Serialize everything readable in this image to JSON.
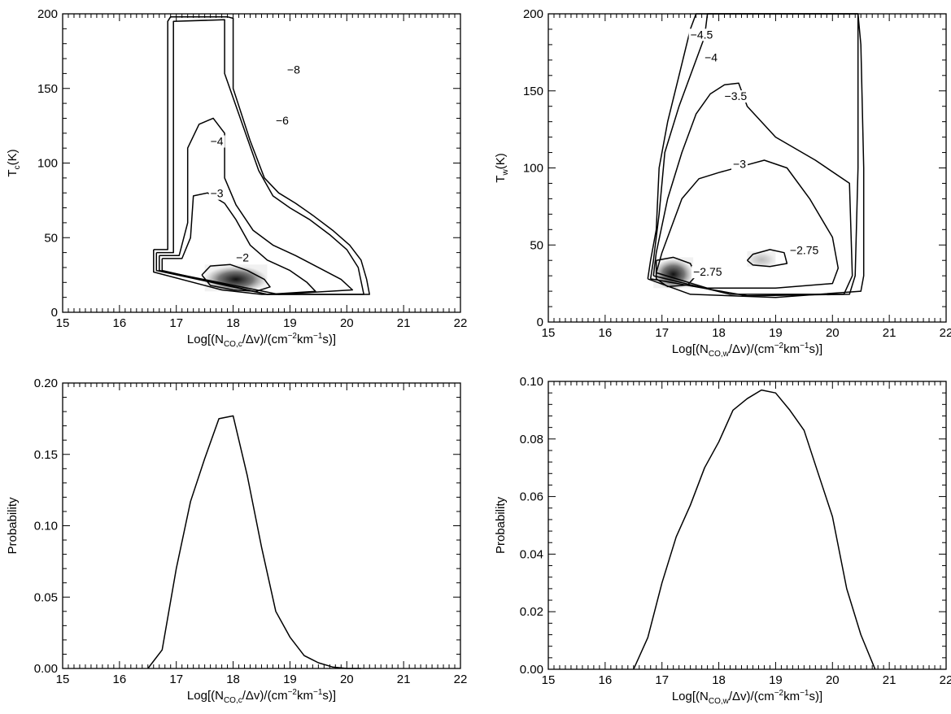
{
  "chart_data": [
    {
      "id": "panel-top-left",
      "type": "contour",
      "xlim": [
        15,
        22
      ],
      "ylim": [
        0,
        200
      ],
      "x_ticks": [
        "15",
        "16",
        "17",
        "18",
        "19",
        "20",
        "21",
        "22"
      ],
      "y_ticks": [
        "0",
        "50",
        "100",
        "150",
        "200"
      ],
      "xlabel": {
        "pre": "Log[(N",
        "sub1": "CO,c",
        "mid": "/Δv)/(cm",
        "sup1": "−2",
        "mid2": "km",
        "sup2": "−1",
        "post": "s)]"
      },
      "ylabel": {
        "pre": "T",
        "sub": "c",
        "post": "(K)"
      },
      "contours": [
        {
          "level": "−8",
          "label_at": [
            18.95,
            160
          ],
          "points": [
            [
              16.6,
              42
            ],
            [
              16.85,
              42
            ],
            [
              16.85,
              195
            ],
            [
              16.9,
              198
            ],
            [
              17.9,
              198
            ],
            [
              18,
              197
            ],
            [
              18,
              150
            ],
            [
              18.3,
              115
            ],
            [
              18.55,
              90
            ],
            [
              18.8,
              80
            ],
            [
              19.1,
              73
            ],
            [
              19.4,
              65
            ],
            [
              19.75,
              55
            ],
            [
              20.05,
              45
            ],
            [
              20.25,
              35
            ],
            [
              20.35,
              22
            ],
            [
              20.4,
              12
            ],
            [
              18.5,
              12
            ],
            [
              17.8,
              15
            ],
            [
              16.6,
              27
            ],
            [
              16.6,
              42
            ]
          ]
        },
        {
          "level": "−6",
          "label_at": [
            18.75,
            126
          ],
          "points": [
            [
              16.65,
              40
            ],
            [
              16.95,
              40
            ],
            [
              16.95,
              195
            ],
            [
              17.85,
              196
            ],
            [
              17.85,
              160
            ],
            [
              18.2,
              122
            ],
            [
              18.45,
              95
            ],
            [
              18.7,
              78
            ],
            [
              19,
              70
            ],
            [
              19.35,
              62
            ],
            [
              19.7,
              52
            ],
            [
              20,
              42
            ],
            [
              20.2,
              30
            ],
            [
              20.3,
              12
            ],
            [
              18.6,
              12
            ],
            [
              16.65,
              28
            ],
            [
              16.65,
              40
            ]
          ]
        },
        {
          "level": "−4",
          "label_at": [
            17.6,
            112
          ],
          "points": [
            [
              16.7,
              38
            ],
            [
              17.05,
              38
            ],
            [
              17.2,
              60
            ],
            [
              17.2,
              110
            ],
            [
              17.4,
              126
            ],
            [
              17.65,
              130
            ],
            [
              17.85,
              120
            ],
            [
              17.85,
              90
            ],
            [
              18.05,
              72
            ],
            [
              18.35,
              55
            ],
            [
              18.7,
              45
            ],
            [
              19.1,
              38
            ],
            [
              19.5,
              30
            ],
            [
              19.9,
              22
            ],
            [
              20.1,
              15
            ],
            [
              18.8,
              12
            ],
            [
              16.7,
              28
            ],
            [
              16.7,
              38
            ]
          ]
        },
        {
          "level": "−3",
          "label_at": [
            17.6,
            77
          ],
          "points": [
            [
              16.75,
              36
            ],
            [
              17.1,
              36
            ],
            [
              17.25,
              50
            ],
            [
              17.3,
              78
            ],
            [
              17.55,
              80
            ],
            [
              17.85,
              73
            ],
            [
              18.05,
              62
            ],
            [
              18.3,
              45
            ],
            [
              18.6,
              35
            ],
            [
              19,
              28
            ],
            [
              19.3,
              20
            ],
            [
              19.45,
              14
            ],
            [
              18.6,
              12
            ],
            [
              16.75,
              28
            ],
            [
              16.75,
              36
            ]
          ]
        },
        {
          "level": "−2",
          "label_at": [
            18.05,
            34
          ],
          "points": [
            [
              17.45,
              25
            ],
            [
              17.6,
              31
            ],
            [
              17.95,
              32
            ],
            [
              18.25,
              28
            ],
            [
              18.55,
              22
            ],
            [
              18.65,
              17
            ],
            [
              18.4,
              14
            ],
            [
              18,
              15
            ],
            [
              17.6,
              18
            ],
            [
              17.45,
              25
            ]
          ]
        }
      ],
      "density_peak": {
        "x": [
          17.5,
          18.6
        ],
        "y": [
          14,
          32
        ]
      }
    },
    {
      "id": "panel-top-right",
      "type": "contour",
      "xlim": [
        15,
        22
      ],
      "ylim": [
        0,
        200
      ],
      "x_ticks": [
        "15",
        "16",
        "17",
        "18",
        "19",
        "20",
        "21",
        "22"
      ],
      "y_ticks": [
        "0",
        "50",
        "100",
        "150",
        "200"
      ],
      "xlabel": {
        "pre": "Log[(N",
        "sub1": "CO,w",
        "mid": "/Δv)/(cm",
        "sup1": "−2",
        "mid2": "km",
        "sup2": "−1",
        "post": "s)]"
      },
      "ylabel": {
        "pre": "T",
        "sub": "w",
        "post": "(K)"
      },
      "contours": [
        {
          "level": "−4.5",
          "label_at": [
            17.5,
            184
          ],
          "points": [
            [
              16.75,
              28
            ],
            [
              16.8,
              40
            ],
            [
              16.9,
              60
            ],
            [
              16.95,
              100
            ],
            [
              17.1,
              130
            ],
            [
              17.3,
              160
            ],
            [
              17.5,
              190
            ],
            [
              17.6,
              200
            ],
            [
              20.45,
              200
            ],
            [
              20.5,
              180
            ],
            [
              20.55,
              100
            ],
            [
              20.55,
              30
            ],
            [
              20.5,
              20
            ],
            [
              19,
              16
            ],
            [
              17.5,
              18
            ],
            [
              16.75,
              28
            ]
          ]
        },
        {
          "level": "−4",
          "label_at": [
            17.75,
            169
          ],
          "points": [
            [
              16.8,
              28
            ],
            [
              16.85,
              40
            ],
            [
              16.95,
              70
            ],
            [
              17.05,
              110
            ],
            [
              17.3,
              140
            ],
            [
              17.6,
              170
            ],
            [
              17.75,
              185
            ],
            [
              17.8,
              200
            ],
            [
              20.45,
              200
            ],
            [
              20.45,
              100
            ],
            [
              20.4,
              30
            ],
            [
              20.3,
              18
            ],
            [
              18.5,
              17
            ],
            [
              16.8,
              28
            ]
          ]
        },
        {
          "level": "−3.5",
          "label_at": [
            18.1,
            144
          ],
          "points": [
            [
              16.85,
              30
            ],
            [
              16.9,
              45
            ],
            [
              17.1,
              80
            ],
            [
              17.35,
              110
            ],
            [
              17.6,
              135
            ],
            [
              17.85,
              148
            ],
            [
              18.1,
              154
            ],
            [
              18.35,
              155
            ],
            [
              18.5,
              140
            ],
            [
              19,
              120
            ],
            [
              19.7,
              105
            ],
            [
              20.3,
              90
            ],
            [
              20.35,
              30
            ],
            [
              20.2,
              18
            ],
            [
              18.2,
              18
            ],
            [
              16.85,
              30
            ]
          ]
        },
        {
          "level": "−3",
          "label_at": [
            18.25,
            100
          ],
          "points": [
            [
              16.9,
              32
            ],
            [
              17,
              45
            ],
            [
              17.35,
              80
            ],
            [
              17.65,
              93
            ],
            [
              18,
              97
            ],
            [
              18.5,
              102
            ],
            [
              18.8,
              105
            ],
            [
              19.2,
              100
            ],
            [
              19.6,
              80
            ],
            [
              20,
              55
            ],
            [
              20.1,
              35
            ],
            [
              20.0,
              25
            ],
            [
              19,
              22
            ],
            [
              17.8,
              22
            ],
            [
              16.9,
              32
            ]
          ]
        },
        {
          "level": "−2.75",
          "label_at": [
            17.55,
            30
          ],
          "points": [
            [
              16.9,
              40
            ],
            [
              17.2,
              42
            ],
            [
              17.5,
              38
            ],
            [
              17.6,
              30
            ],
            [
              17.45,
              24
            ],
            [
              17.1,
              23
            ],
            [
              16.9,
              28
            ],
            [
              16.9,
              40
            ]
          ]
        },
        {
          "level": "−2.75",
          "label_at": [
            19.25,
            44
          ],
          "points": [
            [
              18.5,
              40
            ],
            [
              18.6,
              44
            ],
            [
              18.9,
              47
            ],
            [
              19.15,
              45
            ],
            [
              19.2,
              38
            ],
            [
              18.9,
              36
            ],
            [
              18.6,
              37
            ],
            [
              18.5,
              40
            ]
          ]
        }
      ],
      "density_peak": {
        "x": [
          16.85,
          17.55
        ],
        "y": [
          22,
          42
        ]
      },
      "density_peak_2": {
        "x": [
          18.5,
          19.0
        ],
        "y": [
          36,
          46
        ]
      }
    },
    {
      "id": "panel-bottom-left",
      "type": "line",
      "xlim": [
        15,
        22
      ],
      "ylim": [
        0,
        0.2
      ],
      "x_ticks": [
        "15",
        "16",
        "17",
        "18",
        "19",
        "20",
        "21",
        "22"
      ],
      "y_ticks": [
        "0.00",
        "0.05",
        "0.10",
        "0.15",
        "0.20"
      ],
      "xlabel": {
        "pre": "Log[(N",
        "sub1": "CO,c",
        "mid": "/Δv)/(cm",
        "sup1": "−2",
        "mid2": "km",
        "sup2": "−1",
        "post": "s)]"
      },
      "ylabel": {
        "pre": "Probability",
        "sub": "",
        "post": ""
      },
      "x": [
        16.5,
        16.75,
        17.0,
        17.25,
        17.5,
        17.75,
        18.0,
        18.25,
        18.5,
        18.75,
        19.0,
        19.25,
        19.5,
        19.75,
        20.0,
        20.25
      ],
      "y": [
        0.0,
        0.013,
        0.07,
        0.117,
        0.147,
        0.175,
        0.177,
        0.135,
        0.085,
        0.04,
        0.022,
        0.009,
        0.004,
        0.001,
        0.0,
        0.0
      ]
    },
    {
      "id": "panel-bottom-right",
      "type": "line",
      "xlim": [
        15,
        22
      ],
      "ylim": [
        0,
        0.1
      ],
      "x_ticks": [
        "15",
        "16",
        "17",
        "18",
        "19",
        "20",
        "21",
        "22"
      ],
      "y_ticks": [
        "0.00",
        "0.02",
        "0.04",
        "0.06",
        "0.08",
        "0.10"
      ],
      "xlabel": {
        "pre": "Log[(N",
        "sub1": "CO,w",
        "mid": "/Δv)/(cm",
        "sup1": "−2",
        "mid2": "km",
        "sup2": "−1",
        "post": "s)]"
      },
      "ylabel": {
        "pre": "Probability",
        "sub": "",
        "post": ""
      },
      "x": [
        16.5,
        16.75,
        17.0,
        17.25,
        17.5,
        17.75,
        18.0,
        18.25,
        18.5,
        18.75,
        19.0,
        19.25,
        19.5,
        19.75,
        20.0,
        20.25,
        20.5,
        20.75
      ],
      "y": [
        0.0,
        0.011,
        0.03,
        0.046,
        0.057,
        0.07,
        0.079,
        0.09,
        0.094,
        0.097,
        0.096,
        0.09,
        0.083,
        0.068,
        0.053,
        0.028,
        0.012,
        0.0
      ]
    }
  ]
}
